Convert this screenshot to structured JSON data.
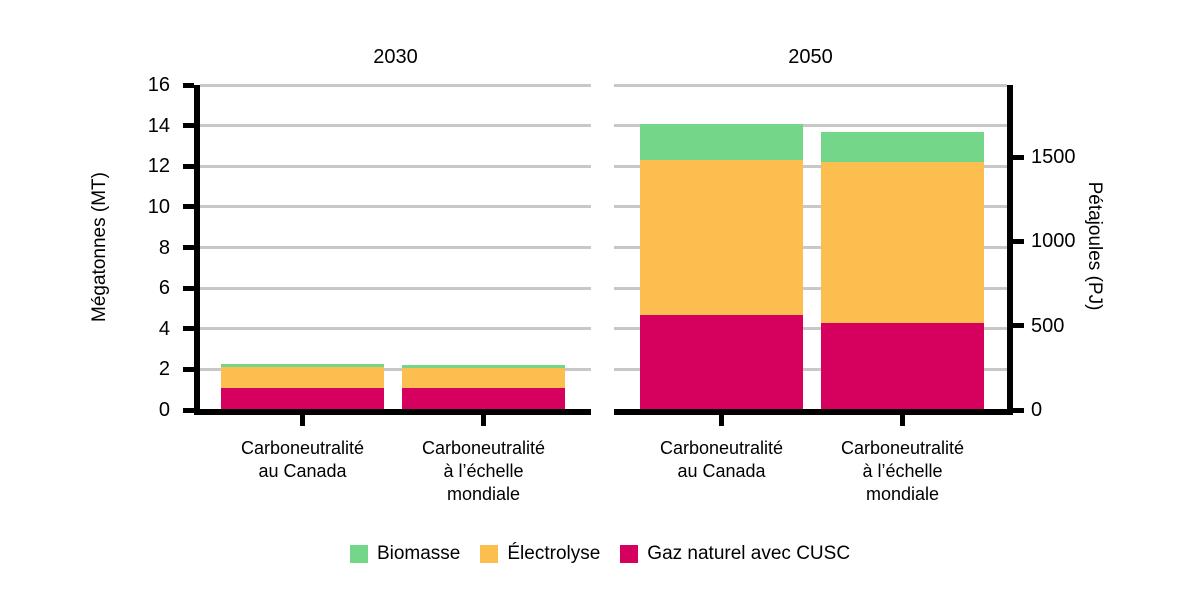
{
  "chart_data": {
    "type": "bar",
    "stacked": true,
    "facets": [
      {
        "title": "2030",
        "categories": [
          [
            "Carboneutralité",
            "au Canada"
          ],
          [
            "Carboneutralité",
            "à l’échelle",
            "mondiale"
          ]
        ],
        "series": [
          {
            "name": "Gaz naturel avec CUSC",
            "key": "gaz-naturel-avec-cusc",
            "values": [
              1.1,
              1.1
            ]
          },
          {
            "name": "Électrolyse",
            "key": "electrolyse",
            "values": [
              1.0,
              0.95
            ]
          },
          {
            "name": "Biomasse",
            "key": "biomasse",
            "values": [
              0.15,
              0.15
            ]
          }
        ]
      },
      {
        "title": "2050",
        "categories": [
          [
            "Carboneutralité",
            "au Canada"
          ],
          [
            "Carboneutralité",
            "à l’échelle",
            "mondiale"
          ]
        ],
        "series": [
          {
            "name": "Gaz naturel avec CUSC",
            "key": "gaz-naturel-avec-cusc",
            "values": [
              4.7,
              4.3
            ]
          },
          {
            "name": "Électrolyse",
            "key": "electrolyse",
            "values": [
              7.6,
              7.9
            ]
          },
          {
            "name": "Biomasse",
            "key": "biomasse",
            "values": [
              1.8,
              1.5
            ]
          }
        ]
      }
    ],
    "ylabel_left": "Mégatonnes (MT)",
    "ylabel_right": "Pétajoules (PJ)",
    "ylim_left": [
      0,
      16
    ],
    "yticks_left": [
      0,
      2,
      4,
      6,
      8,
      10,
      12,
      14,
      16
    ],
    "yticks_right": [
      0,
      500,
      1000,
      1500
    ],
    "pj_per_mt": 120.5,
    "grid": true,
    "legend_position": "bottom",
    "legend": [
      {
        "label": "Biomasse",
        "key": "biomasse",
        "color": "#74d689"
      },
      {
        "label": "Électrolyse",
        "key": "electrolyse",
        "color": "#fcbe4f"
      },
      {
        "label": "Gaz naturel avec CUSC",
        "key": "gaz-naturel-avec-cusc",
        "color": "#d6005f"
      }
    ],
    "colors": {
      "Biomasse": "#74d689",
      "Électrolyse": "#fcbe4f",
      "Gaz naturel avec CUSC": "#d6005f"
    },
    "axis_color": "#000000",
    "gridline_color": "#c8c8c8",
    "text_color": "#000000"
  }
}
